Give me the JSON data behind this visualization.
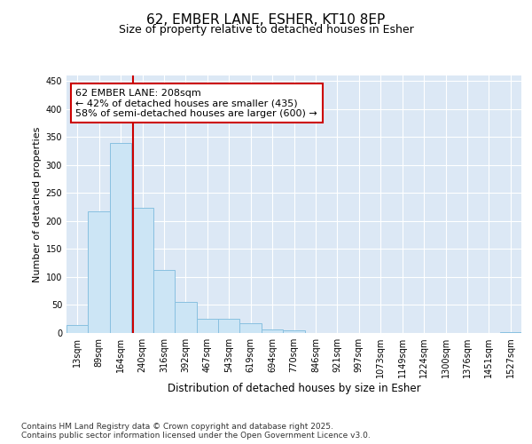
{
  "title": "62, EMBER LANE, ESHER, KT10 8EP",
  "subtitle": "Size of property relative to detached houses in Esher",
  "xlabel": "Distribution of detached houses by size in Esher",
  "ylabel": "Number of detached properties",
  "bar_labels": [
    "13sqm",
    "89sqm",
    "164sqm",
    "240sqm",
    "316sqm",
    "392sqm",
    "467sqm",
    "543sqm",
    "619sqm",
    "694sqm",
    "770sqm",
    "846sqm",
    "921sqm",
    "997sqm",
    "1073sqm",
    "1149sqm",
    "1224sqm",
    "1300sqm",
    "1376sqm",
    "1451sqm",
    "1527sqm"
  ],
  "bar_values": [
    15,
    217,
    340,
    224,
    113,
    55,
    26,
    25,
    18,
    7,
    5,
    0,
    0,
    0,
    0,
    0,
    0,
    0,
    0,
    0,
    2
  ],
  "bar_color": "#cce5f5",
  "bar_edge_color": "#88c0e0",
  "vline_color": "#cc0000",
  "annotation_text": "62 EMBER LANE: 208sqm\n← 42% of detached houses are smaller (435)\n58% of semi-detached houses are larger (600) →",
  "annotation_box_color": "#ffffff",
  "annotation_box_edge_color": "#cc0000",
  "ylim": [
    0,
    460
  ],
  "yticks": [
    0,
    50,
    100,
    150,
    200,
    250,
    300,
    350,
    400,
    450
  ],
  "footer_text": "Contains HM Land Registry data © Crown copyright and database right 2025.\nContains public sector information licensed under the Open Government Licence v3.0.",
  "bg_color": "#ffffff",
  "plot_bg_color": "#dce8f5",
  "grid_color": "#ffffff",
  "title_fontsize": 11,
  "subtitle_fontsize": 9,
  "tick_fontsize": 7,
  "ylabel_fontsize": 8,
  "xlabel_fontsize": 8.5,
  "annotation_fontsize": 8,
  "footer_fontsize": 6.5
}
